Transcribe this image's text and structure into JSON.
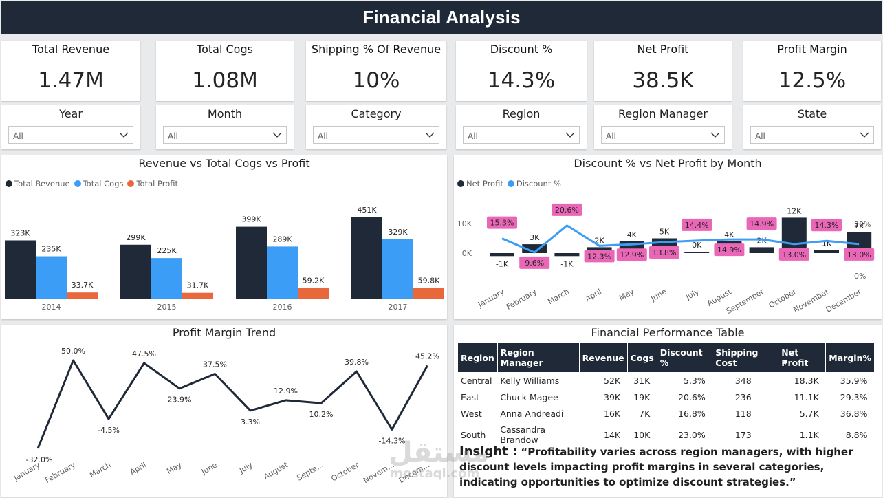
{
  "header": {
    "title": "Financial Analysis"
  },
  "kpis": [
    {
      "label": "Total Revenue",
      "value": "1.47M"
    },
    {
      "label": "Total Cogs",
      "value": "1.08M"
    },
    {
      "label": "Shipping % Of Revenue",
      "value": "10%"
    },
    {
      "label": "Discount %",
      "value": "14.3%"
    },
    {
      "label": "Net Profit",
      "value": "38.5K"
    },
    {
      "label": "Profit Margin",
      "value": "12.5%"
    }
  ],
  "slicers": [
    {
      "label": "Year",
      "value": "All"
    },
    {
      "label": "Month",
      "value": "All"
    },
    {
      "label": "Category",
      "value": "All"
    },
    {
      "label": "Region",
      "value": "All"
    },
    {
      "label": "Region Manager",
      "value": "All"
    },
    {
      "label": "State",
      "value": "All"
    }
  ],
  "colors": {
    "navy": "#1f2937",
    "blue": "#3c9df6",
    "orange": "#e8683c",
    "pink": "#ea67b8"
  },
  "chart_data": [
    {
      "type": "bar",
      "title": "Revenue vs Total Cogs vs Profit",
      "categories": [
        "2014",
        "2015",
        "2016",
        "2017"
      ],
      "series": [
        {
          "name": "Total Revenue",
          "values": [
            323,
            299,
            399,
            451
          ],
          "labels": [
            "323K",
            "299K",
            "399K",
            "451K"
          ],
          "color": "#1f2937"
        },
        {
          "name": "Total Cogs",
          "values": [
            235,
            225,
            289,
            329
          ],
          "labels": [
            "235K",
            "225K",
            "289K",
            "329K"
          ],
          "color": "#3c9df6"
        },
        {
          "name": "Total Profit",
          "values": [
            33.7,
            31.7,
            59.2,
            59.8
          ],
          "labels": [
            "33.7K",
            "31.7K",
            "59.2K",
            "59.8K"
          ],
          "color": "#e8683c"
        }
      ],
      "legend": "top-left",
      "ylim": [
        0,
        451
      ]
    },
    {
      "type": "bar",
      "title": "Discount % vs Net Profit by Month",
      "categories": [
        "January",
        "February",
        "March",
        "April",
        "May",
        "June",
        "July",
        "August",
        "September",
        "October",
        "November",
        "December"
      ],
      "series": [
        {
          "name": "Net Profit",
          "values": [
            -1,
            3,
            -1,
            2,
            4,
            5,
            0,
            4,
            2,
            12,
            1,
            7
          ],
          "labels": [
            "-1K",
            "3K",
            "-1K",
            "2K",
            "4K",
            "5K",
            "0K",
            "4K",
            "2K",
            "12K",
            "1K",
            "7K"
          ],
          "color": "#1f2937"
        },
        {
          "name": "Discount %",
          "values": [
            15.3,
            9.6,
            20.6,
            12.3,
            12.9,
            13.8,
            14.4,
            14.9,
            14.9,
            13.0,
            14.3,
            13.0
          ],
          "labels": [
            "15.3%",
            "9.6%",
            "20.6%",
            "12.3%",
            "12.9%",
            "13.8%",
            "14.4%",
            "14.9%",
            "14.9%",
            "13.0%",
            "14.3%",
            "13.0%"
          ],
          "color": "#3c9df6"
        }
      ],
      "y_ticks": [
        "10K",
        "0K"
      ],
      "y2_ticks": [
        "20%",
        "0%"
      ],
      "legend": "top-left"
    },
    {
      "type": "line",
      "title": "Profit Margin Trend",
      "categories": [
        "January",
        "February",
        "March",
        "April",
        "May",
        "June",
        "July",
        "August",
        "Septe...",
        "October",
        "Novem...",
        "Decem..."
      ],
      "values": [
        -32.0,
        50.0,
        -4.5,
        47.5,
        23.9,
        37.5,
        3.3,
        12.9,
        10.2,
        39.8,
        -14.3,
        45.2
      ],
      "labels": [
        "-32.0%",
        "50.0%",
        "-4.5%",
        "47.5%",
        "23.9%",
        "37.5%",
        "3.3%",
        "12.9%",
        "10.2%",
        "39.8%",
        "-14.3%",
        "45.2%"
      ]
    }
  ],
  "table": {
    "title": "Financial Performance Table",
    "columns": [
      "Region",
      "Region Manager",
      "Revenue",
      "Cogs",
      "Discount %",
      "Shipping Cost",
      "Net Profit",
      "Margin%"
    ],
    "rows": [
      [
        "Central",
        "Kelly Williams",
        "52K",
        "31K",
        "5.3%",
        "348",
        "18.3K",
        "35.9%"
      ],
      [
        "East",
        "Chuck Magee",
        "39K",
        "19K",
        "20.6%",
        "236",
        "11.1K",
        "29.3%"
      ],
      [
        "West",
        "Anna Andreadi",
        "16K",
        "7K",
        "16.8%",
        "118",
        "5.7K",
        "36.8%"
      ],
      [
        "South",
        "Cassandra Brandow",
        "14K",
        "10K",
        "23.0%",
        "173",
        "1.1K",
        "8.8%"
      ]
    ]
  },
  "insight": {
    "label": "Insight :",
    "text": "“Profitability varies across region managers, with higher discount levels impacting profit margins in several categories, indicating opportunities to optimize discount strategies.”"
  },
  "watermark": {
    "arabic": "مستقل",
    "latin": "mostaql.com"
  }
}
